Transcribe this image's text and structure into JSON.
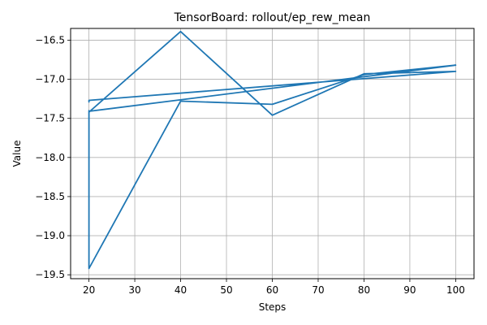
{
  "chart_data": {
    "type": "line",
    "title": "TensorBoard: rollout/ep_rew_mean",
    "xlabel": "Steps",
    "ylabel": "Value",
    "xlim": [
      16,
      104
    ],
    "ylim": [
      -19.55,
      -16.35
    ],
    "x_ticks": [
      20,
      30,
      40,
      50,
      60,
      70,
      80,
      90,
      100
    ],
    "y_ticks": [
      -16.5,
      -17.0,
      -17.5,
      -18.0,
      -18.5,
      -19.0,
      -19.5
    ],
    "grid": true,
    "line_color": "#1f77b4",
    "series": [
      {
        "x": [
          20,
          20,
          40,
          60,
          80,
          100,
          20,
          20,
          40,
          60,
          80,
          100,
          20,
          20
        ],
        "y": [
          -17.4,
          -19.42,
          -17.28,
          -17.32,
          -16.94,
          -16.82,
          -17.41,
          -17.42,
          -16.39,
          -17.46,
          -16.93,
          -16.9,
          -17.27,
          -17.29
        ]
      }
    ]
  }
}
